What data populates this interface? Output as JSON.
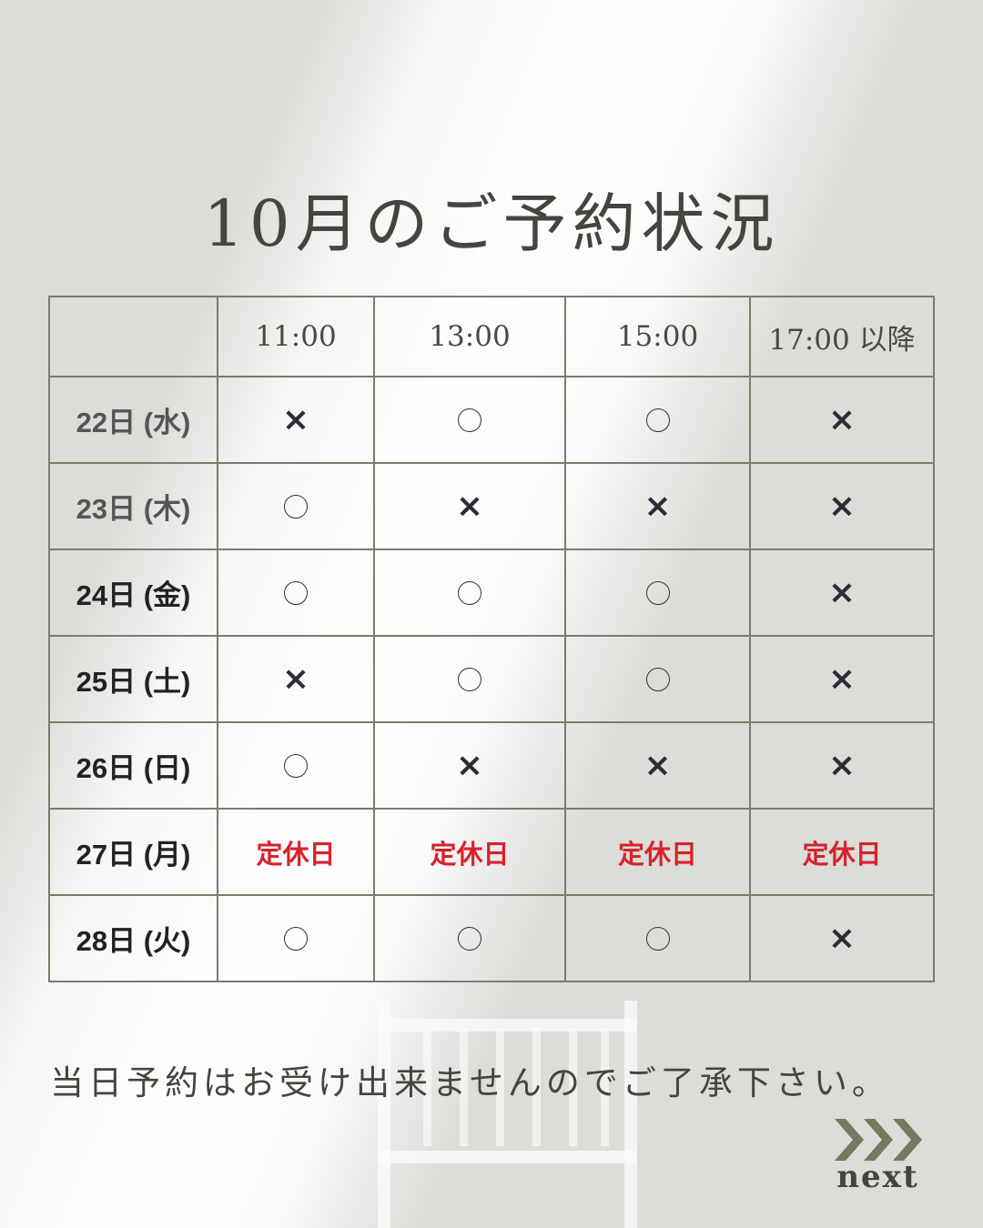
{
  "title": "10月のご予約状況",
  "table": {
    "headers": [
      "",
      "11:00",
      "13:00",
      "15:00",
      "17:00 以降"
    ],
    "rows": [
      {
        "day": "22日 (水)",
        "slots": [
          "×",
          "○",
          "○",
          "×"
        ]
      },
      {
        "day": "23日 (木)",
        "slots": [
          "○",
          "×",
          "×",
          "×"
        ]
      },
      {
        "day": "24日 (金)",
        "slots": [
          "○",
          "○",
          "○",
          "×"
        ]
      },
      {
        "day": "25日 (土)",
        "slots": [
          "×",
          "○",
          "○",
          "×"
        ]
      },
      {
        "day": "26日 (日)",
        "slots": [
          "○",
          "×",
          "×",
          "×"
        ]
      },
      {
        "day": "27日 (月)",
        "slots": [
          "定休日",
          "定休日",
          "定休日",
          "定休日"
        ]
      },
      {
        "day": "28日 (火)",
        "slots": [
          "○",
          "○",
          "○",
          "×"
        ]
      }
    ]
  },
  "note": "当日予約はお受け出来ませんのでご了承下さい。",
  "next": {
    "label": "next",
    "icon": "triple-chevron-right-icon"
  },
  "colors": {
    "accent": "#737a5e",
    "closed": "#d6232c",
    "border": "#7a7d68",
    "text": "#45453f"
  }
}
